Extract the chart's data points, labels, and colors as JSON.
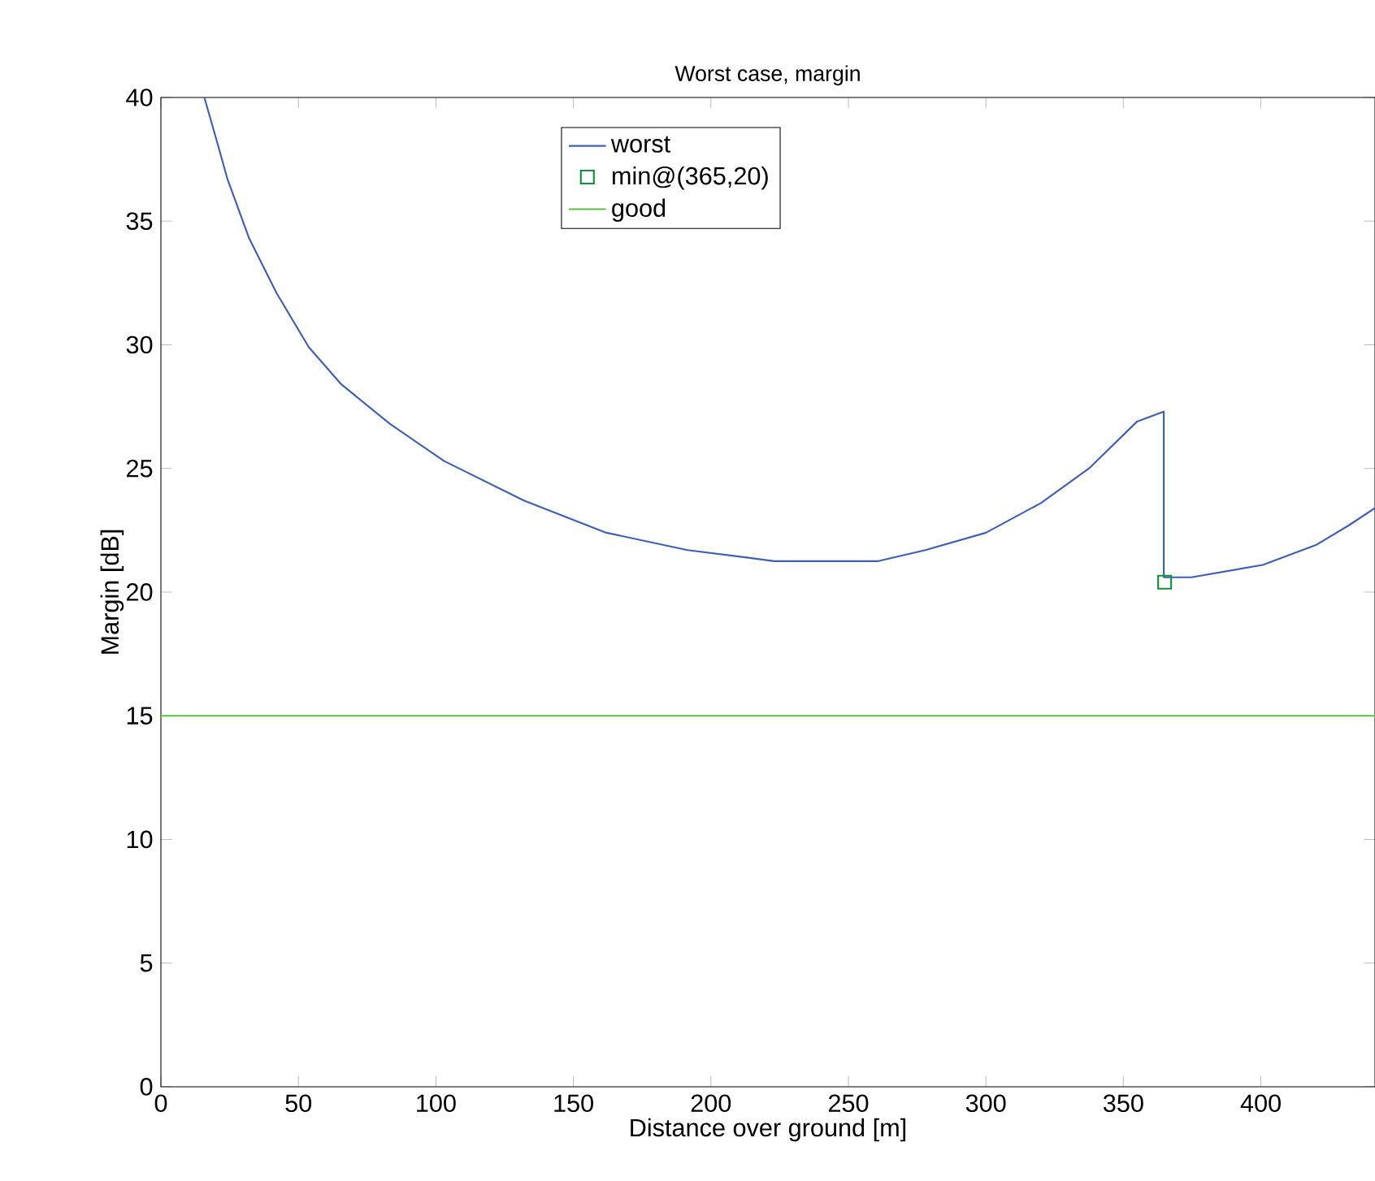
{
  "chart_data": {
    "type": "line",
    "title": "Worst case, margin",
    "xlabel": "Distance over ground [m]",
    "ylabel": "Margin [dB]",
    "xlim": [
      0,
      441.5
    ],
    "ylim": [
      0,
      40
    ],
    "xticks": [
      0,
      50,
      100,
      150,
      200,
      250,
      300,
      350,
      400
    ],
    "yticks": [
      0,
      5,
      10,
      15,
      20,
      25,
      30,
      35,
      40
    ],
    "legend": "top",
    "series": [
      {
        "name": "worst",
        "color": "#3f5fb4",
        "x": [
          15.8,
          20.3,
          24.2,
          32.1,
          42,
          53.8,
          65.6,
          83.3,
          103,
          132,
          162,
          191.5,
          213,
          223,
          260.6,
          278,
          300,
          320,
          337.5,
          355,
          364.7,
          364.7,
          374.7,
          400.7,
          420,
          432,
          441.5
        ],
        "values": [
          40,
          38.25,
          36.7,
          34.3,
          32.1,
          29.9,
          28.4,
          26.8,
          25.3,
          23.7,
          22.4,
          21.7,
          21.4,
          21.25,
          21.25,
          21.7,
          22.4,
          23.6,
          25.0,
          26.9,
          27.3,
          20.6,
          20.6,
          21.1,
          21.9,
          22.7,
          23.4
        ]
      },
      {
        "name": "min@(365,20)",
        "color": "#109040",
        "type": "scatter",
        "marker": "square",
        "x": [
          365
        ],
        "values": [
          20.4
        ]
      },
      {
        "name": "good",
        "color": "#5cc040",
        "x": [
          0,
          441.5
        ],
        "values": [
          15,
          15
        ]
      }
    ]
  }
}
